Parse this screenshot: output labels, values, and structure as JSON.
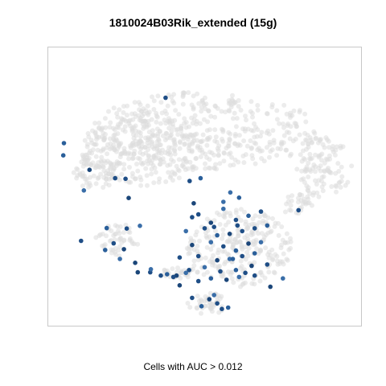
{
  "title": "1810024B03Rik_extended (15g)",
  "caption": "Cells with AUC > 0.012",
  "colors": {
    "background_cells": "#dcdcdc",
    "highlight_cells": "#1f4e86",
    "frame": "#c8c8c8"
  },
  "chart_data": {
    "type": "scatter",
    "title": "1810024B03Rik_extended (15g)",
    "xlabel": "Cells with AUC > 0.012",
    "ylabel": "",
    "grid": false,
    "legend": "none",
    "xlim": [
      0,
      100
    ],
    "ylim": [
      0,
      100
    ],
    "series": [
      {
        "role": "background",
        "clusters": [
          {
            "cx": 50,
            "cy": 70,
            "rx": 36,
            "ry": 14,
            "n": 420,
            "seed": 11
          },
          {
            "cx": 30,
            "cy": 63,
            "rx": 20,
            "ry": 13,
            "n": 260,
            "seed": 23
          },
          {
            "cx": 15,
            "cy": 55,
            "rx": 7,
            "ry": 6,
            "n": 60,
            "seed": 31
          },
          {
            "cx": 88,
            "cy": 57,
            "rx": 9,
            "ry": 11,
            "n": 110,
            "seed": 47
          },
          {
            "cx": 80,
            "cy": 43,
            "rx": 5,
            "ry": 5,
            "n": 30,
            "seed": 53
          },
          {
            "cx": 61,
            "cy": 28,
            "rx": 17,
            "ry": 14,
            "n": 260,
            "seed": 67
          },
          {
            "cx": 22,
            "cy": 31,
            "rx": 7,
            "ry": 6,
            "n": 50,
            "seed": 71
          },
          {
            "cx": 42,
            "cy": 19,
            "rx": 6,
            "ry": 2,
            "n": 35,
            "seed": 83
          },
          {
            "cx": 51,
            "cy": 8,
            "rx": 7,
            "ry": 4,
            "n": 45,
            "seed": 97
          }
        ]
      },
      {
        "role": "highlight",
        "x": [
          37.5,
          4.8,
          13.2,
          11.4,
          21.4,
          24.7,
          25.7,
          29.3,
          45.2,
          48.7,
          53.0,
          58.2,
          10.5,
          5.0,
          27.8,
          32.6,
          20.9,
          18.2,
          24.2,
          22.9,
          25.1,
          18.7,
          28.6,
          32.8,
          46.0,
          48.0,
          52.0,
          56.0,
          60.0,
          64.0,
          68.0,
          44.0,
          50.0,
          54.0,
          58.0,
          62.0,
          66.0,
          70.0,
          46.0,
          52.0,
          56.0,
          60.0,
          64.0,
          68.0,
          42.0,
          48.0,
          54.0,
          58.0,
          62.0,
          66.0,
          45.0,
          50.0,
          55.0,
          60.0,
          65.0,
          70.0,
          48.0,
          52.0,
          57.0,
          61.0,
          66.0,
          38.0,
          41.0,
          44.0,
          36.0,
          40.0,
          46.5,
          56.0,
          60.5,
          59.0,
          63.0,
          53.0,
          46.0,
          49.0,
          51.5,
          55.5,
          54.0,
          57.5,
          71.0,
          75.0,
          80.0,
          61.0,
          42.0
        ],
        "y": [
          81.9,
          61.2,
          56.0,
          48.6,
          53.0,
          52.8,
          45.9,
          35.9,
          52.0,
          53.0,
          35.5,
          47.9,
          30.5,
          65.6,
          22.6,
          19.2,
          29.6,
          27.2,
          27.5,
          24.0,
          34.9,
          35.1,
          19.2,
          20.3,
          39.0,
          40.0,
          37.0,
          42.0,
          38.0,
          39.5,
          41.0,
          34.0,
          35.0,
          32.5,
          33.0,
          34.0,
          35.0,
          36.0,
          29.0,
          30.0,
          28.5,
          27.0,
          29.5,
          30.0,
          24.5,
          25.0,
          23.5,
          24.0,
          25.0,
          26.0,
          20.0,
          21.0,
          19.5,
          20.0,
          21.5,
          22.0,
          16.0,
          17.0,
          16.5,
          17.5,
          18.0,
          18.5,
          18.0,
          19.0,
          18.0,
          17.5,
          44.0,
          44.5,
          36.0,
          24.0,
          19.0,
          11.0,
          10.0,
          7.0,
          9.5,
          6.0,
          8.0,
          6.5,
          14.0,
          17.0,
          41.5,
          46.0,
          14.5
        ]
      }
    ]
  }
}
